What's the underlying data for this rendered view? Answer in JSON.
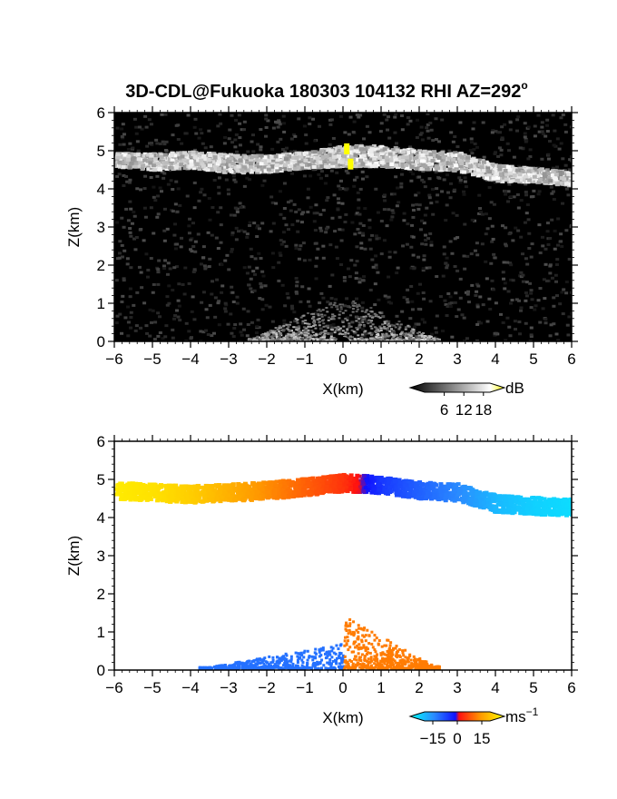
{
  "title": "3D-CDL@Fukuoka 180303 104132 RHI AZ=292",
  "title_degree_mark": "o",
  "chart_data": [
    {
      "type": "heatmap",
      "field": "backscatter intensity",
      "xlabel": "X(km)",
      "ylabel": "Z(km)",
      "xlim": [
        -6,
        6
      ],
      "ylim": [
        0,
        6
      ],
      "x_ticks": [
        -6,
        -5,
        -4,
        -3,
        -2,
        -1,
        0,
        1,
        2,
        3,
        4,
        5,
        6
      ],
      "y_ticks": [
        0,
        1,
        2,
        3,
        4,
        5,
        6
      ],
      "background": "black noise",
      "colormap": "grayscale",
      "colorbar": {
        "unit": "dB",
        "ticks": [
          6,
          12,
          18
        ]
      },
      "cloud_layer": {
        "x": [
          -6,
          -5,
          -4,
          -3,
          -2,
          -1,
          0,
          1,
          2,
          3,
          4,
          5,
          6
        ],
        "z_center": [
          4.8,
          4.75,
          4.8,
          4.7,
          4.7,
          4.8,
          4.9,
          4.9,
          4.8,
          4.75,
          4.45,
          4.4,
          4.3
        ],
        "thickness_km": [
          0.3,
          0.35,
          0.35,
          0.4,
          0.35,
          0.35,
          0.45,
          0.45,
          0.4,
          0.4,
          0.35,
          0.3,
          0.3
        ]
      },
      "near_ground_fan": {
        "x_range": [
          -2.5,
          2.5
        ],
        "z_top": 1.2
      },
      "highlight_points": [
        {
          "x": 0.1,
          "z": 5.05,
          "color": "#ffff00"
        },
        {
          "x": 0.2,
          "z": 4.65,
          "color": "#ffff00"
        }
      ]
    },
    {
      "type": "heatmap",
      "field": "radial velocity",
      "xlabel": "X(km)",
      "ylabel": "Z(km)",
      "xlim": [
        -6,
        6
      ],
      "ylim": [
        0,
        6
      ],
      "x_ticks": [
        -6,
        -5,
        -4,
        -3,
        -2,
        -1,
        0,
        1,
        2,
        3,
        4,
        5,
        6
      ],
      "y_ticks": [
        0,
        1,
        2,
        3,
        4,
        5,
        6
      ],
      "background": "white",
      "colormap": "cyan-blue-red-yellow",
      "colorbar": {
        "unit": "ms",
        "unit_exponent": "−1",
        "ticks": [
          "−15",
          "0",
          "15"
        ],
        "range": [
          -20,
          20
        ]
      },
      "cloud_layer": {
        "x": [
          -6,
          -5,
          -4,
          -3,
          -2,
          -1,
          0,
          1,
          2,
          3,
          4,
          5,
          6
        ],
        "z_center": [
          4.75,
          4.7,
          4.65,
          4.7,
          4.75,
          4.85,
          4.95,
          4.9,
          4.75,
          4.7,
          4.4,
          4.35,
          4.3
        ],
        "velocity_ms": [
          18,
          17,
          15,
          12,
          9,
          6,
          3,
          -4,
          -7,
          -10,
          -14,
          -16,
          -17
        ]
      },
      "near_ground": {
        "negative": {
          "x_range": [
            -3.8,
            0
          ],
          "z_top": 0.65,
          "velocity_ms": -8
        },
        "positive": {
          "x_range": [
            0,
            2.5
          ],
          "z_top": 1.4,
          "velocity_ms": 8
        }
      }
    }
  ]
}
